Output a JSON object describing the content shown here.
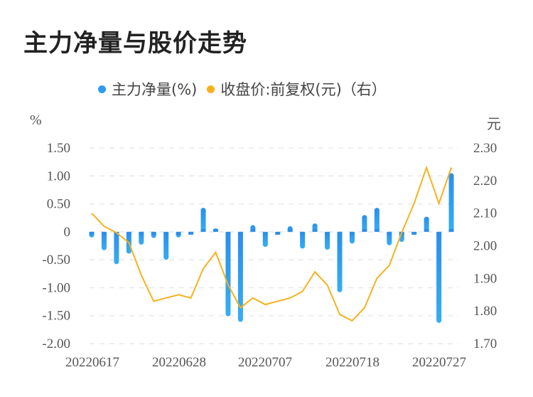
{
  "title": "主力净量与股价走势",
  "legend": [
    {
      "label": "主力净量(%)",
      "color": "#2E9BF0"
    },
    {
      "label": "收盘价:前复权(元)（右）",
      "color": "#F5B21C"
    }
  ],
  "left_unit": "%",
  "right_unit": "元",
  "chart_data": {
    "type": "bar+line",
    "title": "主力净量与股价走势",
    "x_tick_labels": [
      "20220617",
      "20220628",
      "20220707",
      "20220718",
      "20220727"
    ],
    "left_axis": {
      "label": "%",
      "ticks": [
        "1.50",
        "1.00",
        "0.50",
        "0",
        "-0.50",
        "-1.00",
        "-1.50",
        "-2.00"
      ],
      "range": [
        -2.0,
        1.5
      ]
    },
    "right_axis": {
      "label": "元",
      "ticks": [
        "2.30",
        "2.20",
        "2.10",
        "2.00",
        "1.90",
        "1.80",
        "1.70"
      ],
      "range": [
        1.7,
        2.3
      ]
    },
    "grid": true,
    "legend_position": "top",
    "series": [
      {
        "name": "主力净量(%)",
        "type": "bar",
        "axis": "left",
        "color": "#2E9BF0",
        "values": [
          -0.1,
          -0.33,
          -0.58,
          -0.39,
          -0.23,
          -0.11,
          -0.5,
          -0.1,
          -0.03,
          0.43,
          0.06,
          -1.51,
          -1.61,
          0.12,
          -0.27,
          -0.04,
          0.1,
          -0.3,
          0.15,
          -0.32,
          -1.08,
          -0.21,
          0.3,
          0.43,
          -0.24,
          -0.18,
          -0.04,
          0.27,
          -1.63,
          1.05
        ]
      },
      {
        "name": "收盘价:前复权(元)（右）",
        "type": "line",
        "axis": "right",
        "color": "#F5B21C",
        "values": [
          2.1,
          2.06,
          2.04,
          2.01,
          1.91,
          1.83,
          1.84,
          1.85,
          1.84,
          1.93,
          1.98,
          1.88,
          1.81,
          1.84,
          1.82,
          1.83,
          1.84,
          1.86,
          1.92,
          1.88,
          1.79,
          1.77,
          1.81,
          1.9,
          1.94,
          2.04,
          2.13,
          2.24,
          2.13,
          2.24
        ]
      }
    ]
  }
}
